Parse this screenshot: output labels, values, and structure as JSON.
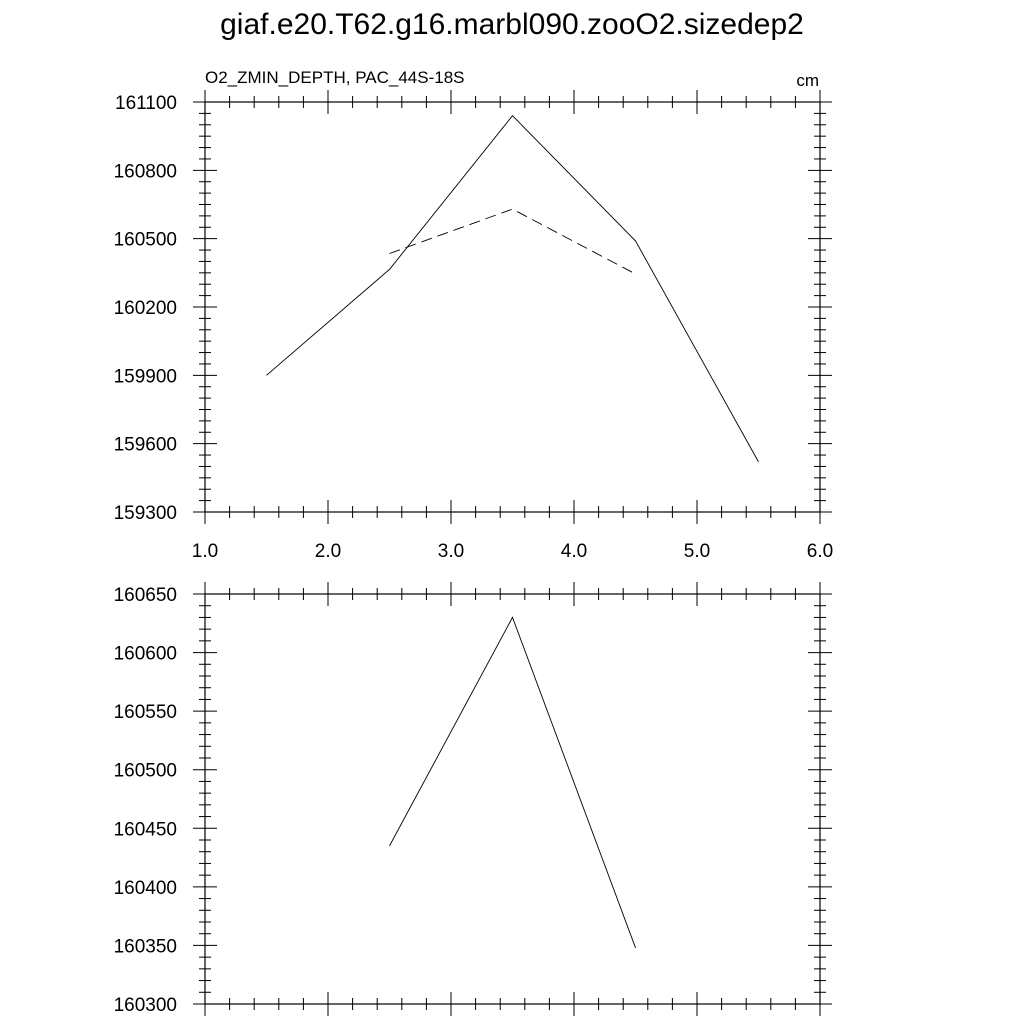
{
  "title": "giaf.e20.T62.g16.marbl090.zooO2.sizedep2",
  "chart_data": [
    {
      "type": "line",
      "subtitle_left": "O2_ZMIN_DEPTH, PAC_44S-18S",
      "subtitle_right": "cm",
      "xlim": [
        1.0,
        6.0
      ],
      "ylim": [
        159300,
        161100
      ],
      "x_ticks": [
        1.0,
        2.0,
        3.0,
        4.0,
        5.0,
        6.0
      ],
      "x_tick_labels": [
        "1.0",
        "2.0",
        "3.0",
        "4.0",
        "5.0",
        "6.0"
      ],
      "y_ticks": [
        159300,
        159600,
        159900,
        160200,
        160500,
        160800,
        161100
      ],
      "y_tick_labels": [
        "159300",
        "159600",
        "159900",
        "160200",
        "160500",
        "160800",
        "161100"
      ],
      "series": [
        {
          "style": "solid",
          "x": [
            1.5,
            2.5,
            3.5,
            4.5,
            5.5
          ],
          "values": [
            159900,
            160365,
            161040,
            160490,
            159520
          ]
        },
        {
          "style": "dashed",
          "x": [
            2.5,
            3.5,
            4.5
          ],
          "values": [
            160435,
            160630,
            160345
          ]
        }
      ],
      "grid": false,
      "legend": "none"
    },
    {
      "type": "line",
      "xlim": [
        1.0,
        6.0
      ],
      "ylim": [
        160300,
        160650
      ],
      "x_ticks": [
        1.0,
        2.0,
        3.0,
        4.0,
        5.0,
        6.0
      ],
      "y_ticks": [
        160300,
        160350,
        160400,
        160450,
        160500,
        160550,
        160600,
        160650
      ],
      "y_tick_labels": [
        "160300",
        "160350",
        "160400",
        "160450",
        "160500",
        "160550",
        "160600",
        "160650"
      ],
      "series": [
        {
          "style": "solid",
          "x": [
            2.5,
            3.5,
            4.5
          ],
          "values": [
            160435,
            160630,
            160348
          ]
        }
      ],
      "grid": false,
      "legend": "none"
    }
  ]
}
